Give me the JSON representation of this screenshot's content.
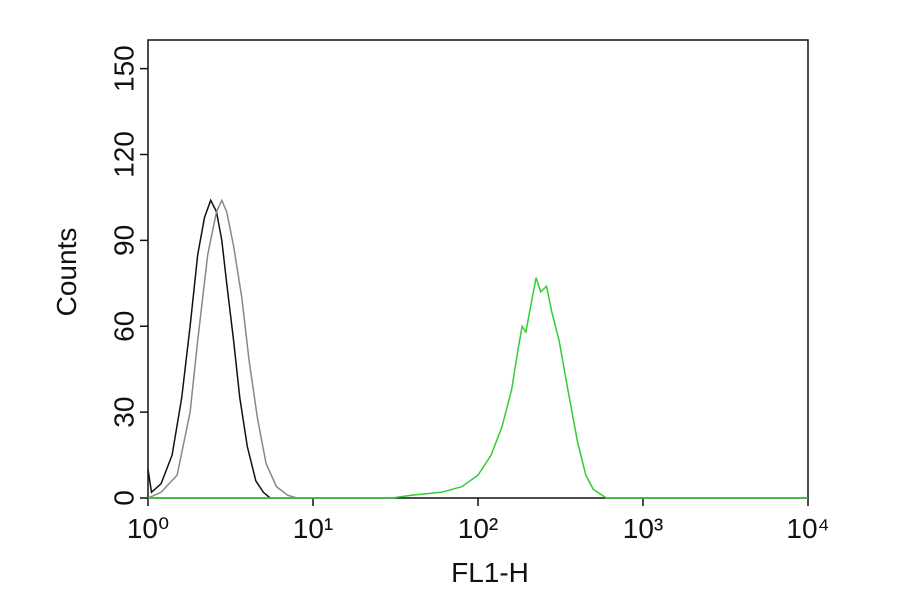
{
  "chart_data": {
    "type": "line",
    "xlabel": "FL1-H",
    "ylabel": "Counts",
    "xscale": "log",
    "xlim": [
      1,
      10000
    ],
    "ylim": [
      0,
      160
    ],
    "xticks": [
      {
        "value": 1,
        "label": "10⁰"
      },
      {
        "value": 10,
        "label": "10¹"
      },
      {
        "value": 100,
        "label": "10²"
      },
      {
        "value": 1000,
        "label": "10³"
      },
      {
        "value": 10000,
        "label": "10⁴"
      }
    ],
    "yticks": [
      0,
      30,
      60,
      90,
      120,
      150
    ],
    "series": [
      {
        "color": "#111111",
        "x": [
          1.0,
          1.05,
          1.2,
          1.4,
          1.6,
          1.8,
          2.0,
          2.2,
          2.4,
          2.6,
          2.8,
          3.0,
          3.3,
          3.6,
          4.0,
          4.5,
          5.0,
          5.5
        ],
        "values": [
          10,
          2,
          5,
          15,
          35,
          60,
          85,
          98,
          104,
          100,
          90,
          75,
          55,
          35,
          18,
          6,
          2,
          0
        ]
      },
      {
        "color": "#888888",
        "x": [
          1.0,
          1.2,
          1.5,
          1.8,
          2.0,
          2.3,
          2.6,
          2.8,
          3.0,
          3.3,
          3.7,
          4.1,
          4.6,
          5.2,
          6.0,
          7.0,
          8.0
        ],
        "values": [
          0,
          2,
          8,
          30,
          55,
          85,
          100,
          104,
          100,
          88,
          70,
          48,
          28,
          12,
          4,
          1,
          0
        ]
      },
      {
        "color": "#33cc33",
        "x": [
          1,
          30,
          40,
          60,
          80,
          100,
          120,
          140,
          160,
          175,
          185,
          195,
          210,
          225,
          240,
          260,
          280,
          310,
          350,
          400,
          450,
          500,
          600,
          10000
        ],
        "values": [
          0,
          0,
          1,
          2,
          4,
          8,
          15,
          25,
          38,
          52,
          60,
          58,
          68,
          77,
          72,
          74,
          65,
          55,
          38,
          20,
          8,
          3,
          0,
          0
        ]
      }
    ]
  }
}
